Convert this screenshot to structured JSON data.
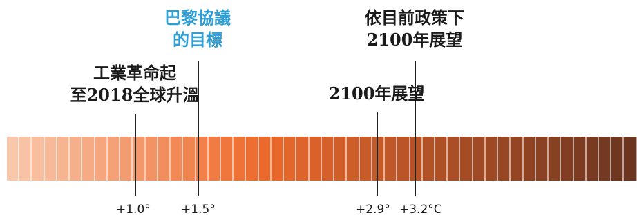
{
  "annotations": [
    {
      "id": "industrial",
      "lines": [
        "工業革命起",
        "至2018全球升溫"
      ],
      "tick": "+1.0°",
      "accent": false
    },
    {
      "id": "paris",
      "lines": [
        "巴黎協議",
        "的目標"
      ],
      "tick": "+1.5°",
      "accent": true
    },
    {
      "id": "outlook2100",
      "lines": [
        "2100年展望"
      ],
      "tick": "+2.9°",
      "accent": false
    },
    {
      "id": "policy2100",
      "lines": [
        "依目前政策下",
        "2100年展望"
      ],
      "tick": "+3.2°C",
      "accent": false
    }
  ],
  "colors": {
    "accent": "#2e9fd6",
    "gradient_start": "#f9c7ab",
    "gradient_mid": "#ee6a2c",
    "gradient_end": "#6b3520"
  }
}
